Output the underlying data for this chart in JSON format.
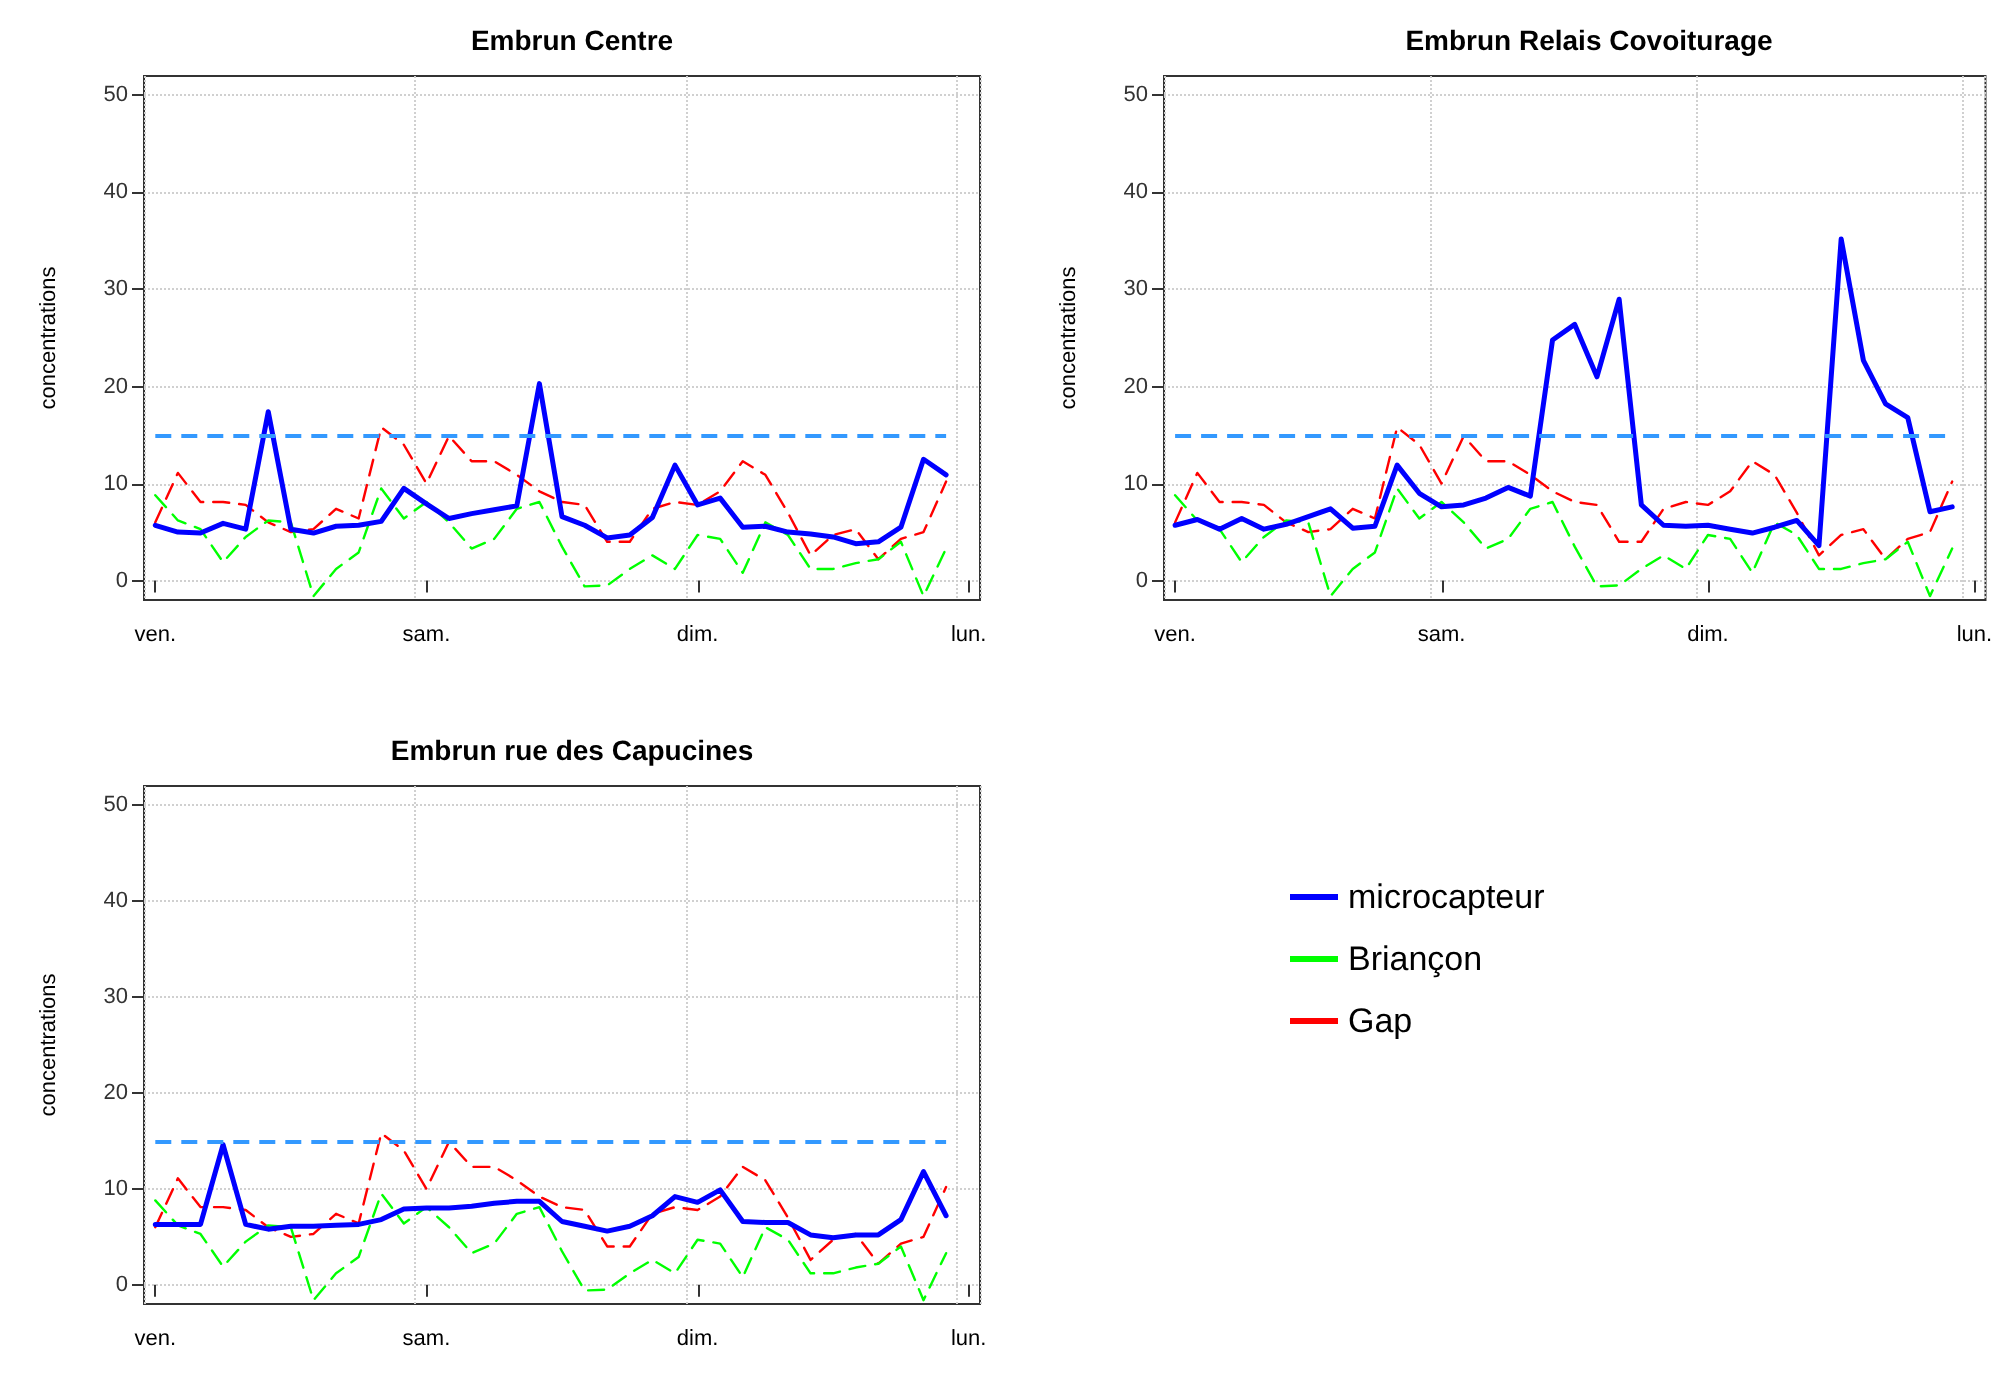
{
  "chart_data": [
    {
      "type": "line",
      "title": "Embrun Centre",
      "ylabel": "concentrations",
      "ylim": [
        -2,
        52
      ],
      "yticks": [
        0,
        10,
        20,
        30,
        40,
        50
      ],
      "categories": [
        "ven.",
        null,
        null,
        null,
        null,
        null,
        null,
        null,
        null,
        null,
        null,
        null,
        "sam.",
        null,
        null,
        null,
        null,
        null,
        null,
        null,
        null,
        null,
        null,
        null,
        "dim.",
        null,
        null,
        null,
        null,
        null,
        null,
        null,
        null,
        null,
        null,
        null,
        "lun."
      ],
      "grid": true,
      "legend": false,
      "marker": "none",
      "ref_lines": [
        {
          "axis": "y",
          "value": 15,
          "color": "#3399ff",
          "line_style": "dashed"
        }
      ],
      "series": [
        {
          "color": "#0000ff",
          "line_style": "solid",
          "values": [
            5.7,
            5.0,
            4.9,
            5.9,
            5.3,
            17.4,
            5.3,
            4.9,
            5.6,
            5.7,
            6.1,
            9.5,
            7.9,
            6.4,
            6.9,
            7.3,
            7.7,
            20.3,
            6.6,
            5.7,
            4.4,
            4.7,
            6.5,
            11.9,
            7.8,
            8.5,
            5.5,
            5.6,
            5.0,
            4.8,
            4.5,
            3.8,
            4.0,
            5.5,
            12.5,
            10.9,
            null
          ]
        },
        {
          "color": "#00ff00",
          "line_style": "dashed",
          "values": [
            8.8,
            6.2,
            5.3,
            1.9,
            4.5,
            6.2,
            6.0,
            -1.6,
            1.2,
            2.9,
            9.5,
            6.4,
            8.1,
            6.0,
            3.3,
            4.3,
            7.4,
            8.1,
            3.5,
            -0.6,
            -0.5,
            1.2,
            2.6,
            1.2,
            4.7,
            4.3,
            0.8,
            6.0,
            4.7,
            1.2,
            1.2,
            1.8,
            2.2,
            4.0,
            -1.6,
            3.3,
            null
          ]
        },
        {
          "color": "#ff0000",
          "line_style": "dashed",
          "values": [
            6.0,
            11.1,
            8.1,
            8.1,
            7.8,
            6.0,
            5.0,
            5.3,
            7.4,
            6.4,
            15.8,
            14.0,
            10.0,
            14.9,
            12.3,
            12.3,
            10.9,
            9.2,
            8.1,
            7.8,
            4.0,
            4.0,
            7.4,
            8.1,
            7.8,
            9.2,
            12.3,
            10.9,
            7.0,
            2.6,
            4.7,
            5.3,
            2.2,
            4.3,
            5.0,
            10.2,
            null
          ]
        }
      ]
    },
    {
      "type": "line",
      "title": "Embrun Relais Covoiturage",
      "ylabel": "concentrations",
      "ylim": [
        -2,
        52
      ],
      "yticks": [
        0,
        10,
        20,
        30,
        40,
        50
      ],
      "categories": [
        "ven.",
        null,
        null,
        null,
        null,
        null,
        null,
        null,
        null,
        null,
        null,
        null,
        "sam.",
        null,
        null,
        null,
        null,
        null,
        null,
        null,
        null,
        null,
        null,
        null,
        "dim.",
        null,
        null,
        null,
        null,
        null,
        null,
        null,
        null,
        null,
        null,
        null,
        "lun."
      ],
      "grid": true,
      "legend": false,
      "marker": "none",
      "ref_lines": [
        {
          "axis": "y",
          "value": 15,
          "color": "#3399ff",
          "line_style": "dashed"
        }
      ],
      "series": [
        {
          "color": "#0000ff",
          "line_style": "solid",
          "values": [
            5.7,
            6.3,
            5.3,
            6.4,
            5.3,
            5.8,
            6.6,
            7.4,
            5.4,
            5.6,
            11.9,
            9.0,
            7.6,
            7.8,
            8.5,
            9.6,
            8.7,
            24.8,
            26.4,
            21.0,
            29.0,
            7.8,
            5.7,
            5.6,
            5.7,
            5.3,
            4.9,
            5.5,
            6.2,
            3.6,
            35.2,
            22.7,
            18.2,
            16.8,
            7.1,
            7.6,
            null
          ]
        },
        {
          "color": "#00ff00",
          "line_style": "dashed",
          "values": [
            8.8,
            6.2,
            5.3,
            1.9,
            4.5,
            6.2,
            6.0,
            -1.6,
            1.2,
            2.9,
            9.5,
            6.4,
            8.1,
            6.0,
            3.3,
            4.3,
            7.4,
            8.1,
            3.5,
            -0.6,
            -0.5,
            1.2,
            2.6,
            1.2,
            4.7,
            4.3,
            0.8,
            6.0,
            4.7,
            1.2,
            1.2,
            1.8,
            2.2,
            4.0,
            -1.6,
            3.3,
            null
          ]
        },
        {
          "color": "#ff0000",
          "line_style": "dashed",
          "values": [
            6.0,
            11.1,
            8.1,
            8.1,
            7.8,
            6.0,
            5.0,
            5.3,
            7.4,
            6.4,
            15.8,
            14.0,
            10.0,
            14.9,
            12.3,
            12.3,
            10.9,
            9.2,
            8.1,
            7.8,
            4.0,
            4.0,
            7.4,
            8.1,
            7.8,
            9.2,
            12.3,
            10.9,
            7.0,
            2.6,
            4.7,
            5.3,
            2.2,
            4.3,
            5.0,
            10.2,
            null
          ]
        }
      ]
    },
    {
      "type": "line",
      "title": "Embrun rue des Capucines",
      "ylabel": "concentrations",
      "ylim": [
        -2,
        52
      ],
      "yticks": [
        0,
        10,
        20,
        30,
        40,
        50
      ],
      "categories": [
        "ven.",
        null,
        null,
        null,
        null,
        null,
        null,
        null,
        null,
        null,
        null,
        null,
        "sam.",
        null,
        null,
        null,
        null,
        null,
        null,
        null,
        null,
        null,
        null,
        null,
        "dim.",
        null,
        null,
        null,
        null,
        null,
        null,
        null,
        null,
        null,
        null,
        null,
        "lun."
      ],
      "grid": true,
      "legend": "right",
      "marker": "none",
      "ref_lines": [
        {
          "axis": "y",
          "value": 15,
          "color": "#3399ff",
          "line_style": "dashed"
        }
      ],
      "series": [
        {
          "name": "microcapteur",
          "color": "#0000ff",
          "line_style": "solid",
          "values": [
            6.3,
            6.3,
            6.3,
            14.6,
            6.3,
            5.8,
            6.1,
            6.1,
            6.2,
            6.3,
            6.8,
            7.9,
            8.0,
            8.0,
            8.2,
            8.5,
            8.7,
            8.7,
            6.6,
            6.1,
            5.6,
            6.1,
            7.2,
            9.2,
            8.6,
            9.9,
            6.6,
            6.5,
            6.5,
            5.2,
            4.9,
            5.2,
            5.2,
            6.8,
            11.8,
            7.2,
            null
          ]
        },
        {
          "name": "Briançon",
          "color": "#00ff00",
          "line_style": "dashed",
          "values": [
            8.8,
            6.2,
            5.3,
            1.9,
            4.5,
            6.2,
            6.0,
            -1.6,
            1.2,
            2.9,
            9.5,
            6.4,
            8.1,
            6.0,
            3.3,
            4.3,
            7.4,
            8.1,
            3.5,
            -0.6,
            -0.5,
            1.2,
            2.6,
            1.2,
            4.7,
            4.3,
            0.8,
            6.0,
            4.7,
            1.2,
            1.2,
            1.8,
            2.2,
            4.0,
            -1.6,
            3.3,
            null
          ]
        },
        {
          "name": "Gap",
          "color": "#ff0000",
          "line_style": "dashed",
          "values": [
            6.0,
            11.1,
            8.1,
            8.1,
            7.8,
            6.0,
            5.0,
            5.3,
            7.4,
            6.4,
            15.8,
            14.0,
            10.0,
            14.9,
            12.3,
            12.3,
            10.9,
            9.2,
            8.1,
            7.8,
            4.0,
            4.0,
            7.4,
            8.1,
            7.8,
            9.2,
            12.3,
            10.9,
            7.0,
            2.6,
            4.7,
            5.3,
            2.2,
            4.3,
            5.0,
            10.2,
            null
          ]
        }
      ]
    }
  ]
}
